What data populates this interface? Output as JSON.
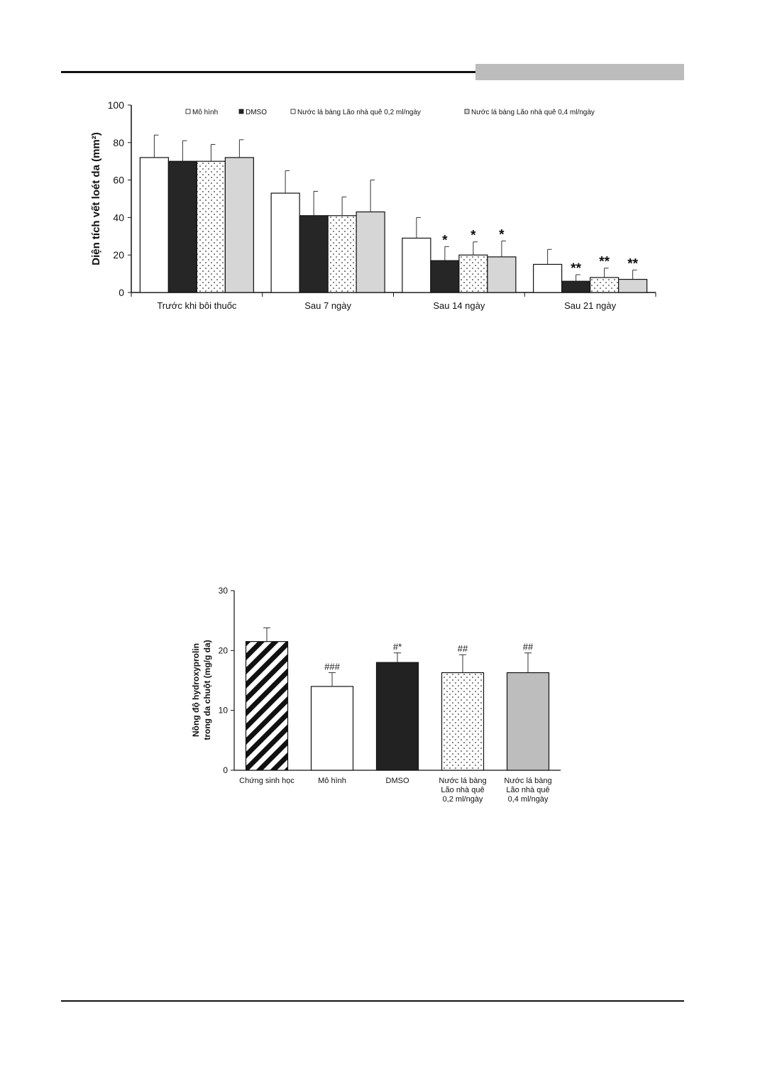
{
  "chart_data": [
    {
      "type": "bar",
      "ylabel": "Diện tích vết loét da (mm²)",
      "ylim": [
        0,
        100
      ],
      "yticks": [
        0,
        20,
        40,
        60,
        80,
        100
      ],
      "legend_position": "top",
      "categories": [
        "Trước khi bôi thuốc",
        "Sau 7 ngày",
        "Sau 14 ngày",
        "Sau 21 ngày"
      ],
      "series": [
        {
          "name": "Mô hình",
          "values": [
            72,
            53,
            29,
            15
          ],
          "errors": [
            12,
            12,
            11,
            8
          ],
          "fill": "white",
          "labels": [
            "",
            "",
            "",
            ""
          ]
        },
        {
          "name": "DMSO",
          "values": [
            70,
            41,
            17,
            6
          ],
          "errors": [
            11,
            13,
            7.5,
            3.5
          ],
          "fill": "black",
          "labels": [
            "",
            "",
            "*",
            "**"
          ]
        },
        {
          "name": "Nước lá bàng Lão nhà quê 0,2 ml/ngày",
          "values": [
            70,
            41,
            20,
            8
          ],
          "errors": [
            9,
            10,
            7,
            5
          ],
          "fill": "dots",
          "labels": [
            "",
            "",
            "*",
            "**"
          ]
        },
        {
          "name": "Nước lá bàng Lão nhà quê 0,4 ml/ngày",
          "values": [
            72,
            43,
            19,
            7
          ],
          "errors": [
            9.5,
            17,
            8.5,
            5
          ],
          "fill": "gray",
          "labels": [
            "",
            "",
            "*",
            "**"
          ]
        }
      ],
      "colors": {
        "black": "#262626",
        "gray": "#d6d6d6",
        "dots": "#ffffff"
      }
    },
    {
      "type": "bar",
      "ylabel": [
        "Nồng độ hydroxyprolin",
        "trong da chuột (mg/g da)"
      ],
      "ylim": [
        0,
        30
      ],
      "yticks": [
        0,
        10,
        20,
        30
      ],
      "categories": [
        [
          "Chứng sinh học"
        ],
        [
          "Mô hình"
        ],
        [
          "DMSO"
        ],
        [
          "Nước lá bàng",
          "Lão nhà quê",
          "0,2 ml/ngày"
        ],
        [
          "Nước lá bàng",
          "Lão nhà quê",
          "0,4 ml/ngày"
        ]
      ],
      "values": [
        21.5,
        14,
        18,
        16.3,
        16.3
      ],
      "errors": [
        2.3,
        2.3,
        1.6,
        3,
        3.3
      ],
      "fills": [
        "hatch",
        "white",
        "black",
        "dots",
        "gray"
      ],
      "labels": [
        "",
        "###",
        "#*",
        "##",
        "##"
      ],
      "colors": {
        "black": "#222222",
        "gray": "#bdbdbd",
        "dots": "#ffffff"
      }
    }
  ]
}
